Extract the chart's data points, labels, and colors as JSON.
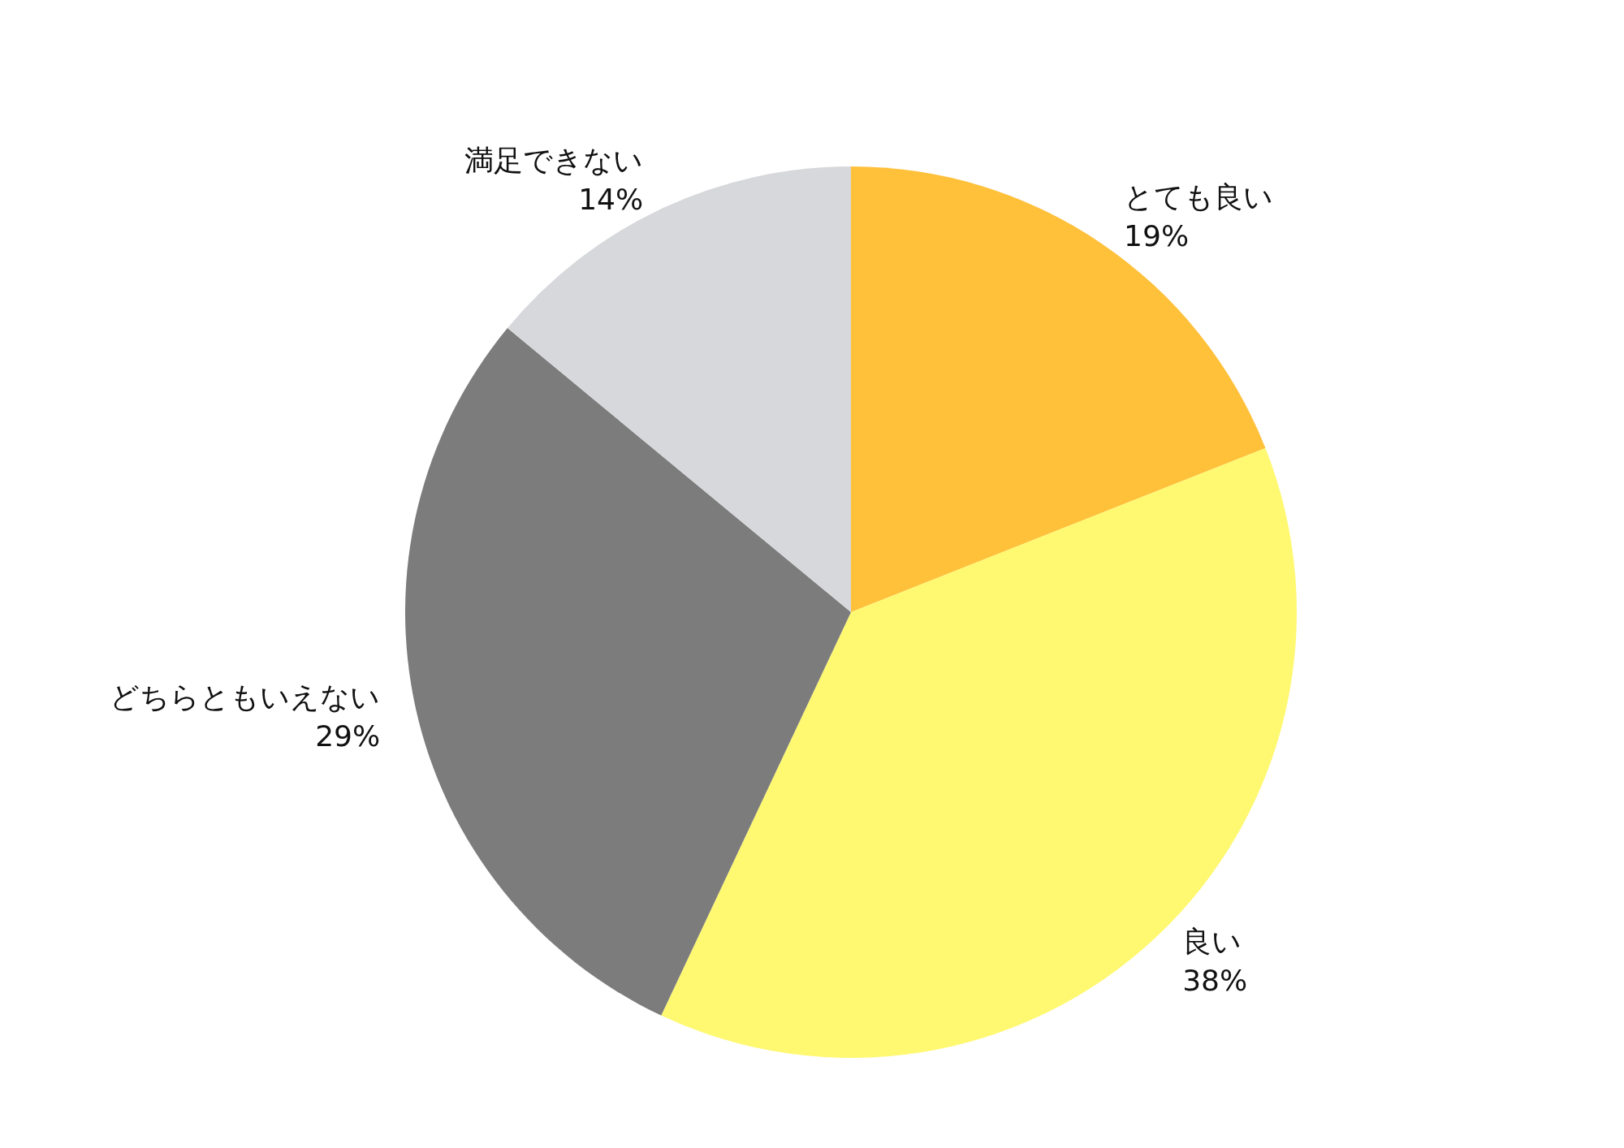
{
  "chart_data": {
    "type": "pie",
    "categories": [
      "とても良い",
      "良い",
      "どちらともいえない",
      "満足できない"
    ],
    "values": [
      19,
      38,
      29,
      14
    ],
    "colors": [
      "#ffc03a",
      "#fff871",
      "#7c7c7c",
      "#d7d8db"
    ],
    "value_labels": [
      "19%",
      "38%",
      "29%",
      "14%"
    ],
    "legend": false
  }
}
